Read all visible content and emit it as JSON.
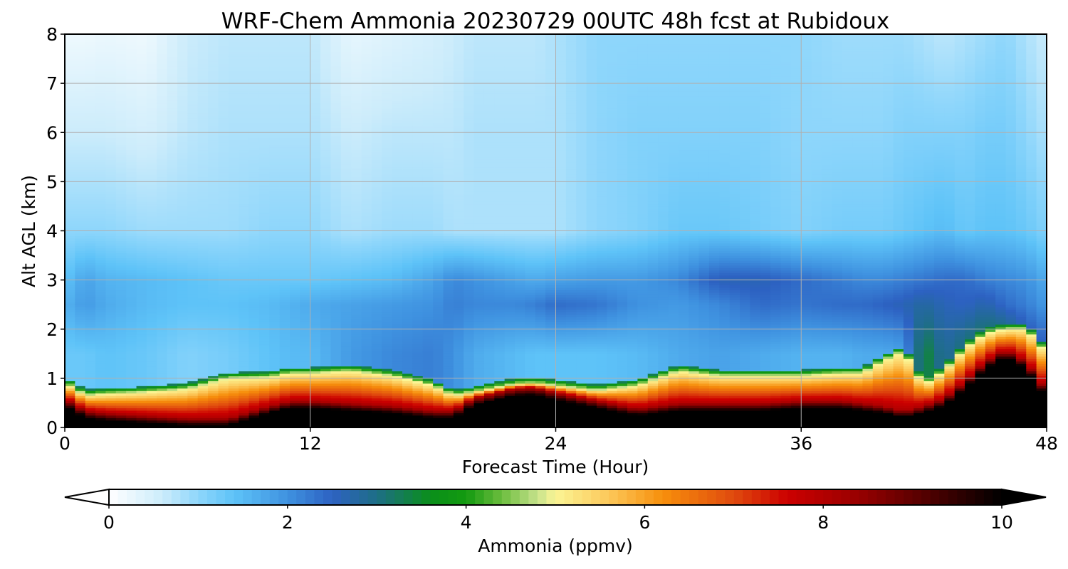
{
  "chart_data": {
    "type": "heatmap",
    "title": "WRF-Chem Ammonia  20230729 00UTC 48h fcst at Rubidoux",
    "xlabel": "Forecast Time (Hour)",
    "ylabel": "Alt AGL (km)",
    "xlim": [
      0,
      48
    ],
    "ylim": [
      0,
      8
    ],
    "xticks": [
      "0",
      "12",
      "24",
      "36",
      "48"
    ],
    "yticks": [
      "0",
      "1",
      "2",
      "3",
      "4",
      "5",
      "6",
      "7",
      "8"
    ],
    "grid": true,
    "colorbar": {
      "label": "Ammonia  (ppmv)",
      "range": [
        0,
        10
      ],
      "ticks": [
        "0",
        "2",
        "4",
        "6",
        "8",
        "10"
      ],
      "extend": "both",
      "stops": [
        [
          0,
          "#ffffff"
        ],
        [
          0.6,
          "#ccecfb"
        ],
        [
          1.0,
          "#8ed6fb"
        ],
        [
          1.4,
          "#5ec3f8"
        ],
        [
          2.0,
          "#3f92e0"
        ],
        [
          2.5,
          "#2d62c2"
        ],
        [
          3.0,
          "#1e6e86"
        ],
        [
          3.6,
          "#0a8f1a"
        ],
        [
          4.0,
          "#139a10"
        ],
        [
          4.4,
          "#6cbd3e"
        ],
        [
          4.8,
          "#c6e28c"
        ],
        [
          5.0,
          "#fbf595"
        ],
        [
          5.6,
          "#fcc85a"
        ],
        [
          6.2,
          "#f78f0c"
        ],
        [
          7.0,
          "#e04a0e"
        ],
        [
          7.6,
          "#cc0000"
        ],
        [
          8.4,
          "#980000"
        ],
        [
          9.2,
          "#4d0000"
        ],
        [
          10,
          "#000000"
        ]
      ]
    },
    "forecast_hours": [
      0,
      1,
      2,
      4,
      6,
      8,
      10,
      11,
      12,
      14,
      16,
      18,
      19,
      20,
      22,
      23,
      24,
      26,
      28,
      30,
      32,
      34,
      36,
      38,
      39,
      40,
      41,
      42,
      43,
      44,
      45,
      46,
      47,
      48
    ],
    "series": [
      {
        "name": "boundary_layer_top_km",
        "values": [
          0.9,
          0.65,
          0.68,
          0.72,
          0.78,
          1.0,
          1.02,
          1.1,
          1.1,
          1.15,
          1.05,
          0.85,
          0.65,
          0.72,
          0.88,
          0.9,
          0.85,
          0.75,
          0.85,
          1.15,
          1.05,
          1.05,
          1.05,
          1.1,
          1.1,
          1.35,
          1.55,
          0.85,
          1.15,
          1.6,
          1.9,
          2.0,
          2.0,
          1.5
        ]
      },
      {
        "name": "surface_layer_top_km",
        "values": [
          0.6,
          0.35,
          0.3,
          0.25,
          0.2,
          0.2,
          0.45,
          0.55,
          0.55,
          0.5,
          0.45,
          0.35,
          0.35,
          0.6,
          0.8,
          0.82,
          0.72,
          0.55,
          0.4,
          0.5,
          0.5,
          0.5,
          0.55,
          0.55,
          0.5,
          0.45,
          0.35,
          0.45,
          0.6,
          0.95,
          1.35,
          1.6,
          1.35,
          0.75
        ]
      }
    ],
    "upper_levels_km": [
      1.5,
      2.5,
      3.0,
      4.0,
      6.0,
      8.0
    ],
    "upper_values_ppmv": [
      [
        1.3,
        1.6,
        1.4,
        1.0,
        0.6,
        0.2
      ],
      [
        1.3,
        1.9,
        1.8,
        1.0,
        0.6,
        0.2
      ],
      [
        1.4,
        1.7,
        1.6,
        1.0,
        0.6,
        0.25
      ],
      [
        1.3,
        1.5,
        1.5,
        0.9,
        0.5,
        0.2
      ],
      [
        1.1,
        1.4,
        1.4,
        0.9,
        0.7,
        0.6
      ],
      [
        1.2,
        1.4,
        1.3,
        0.9,
        0.8,
        0.7
      ],
      [
        1.4,
        1.5,
        1.3,
        1.0,
        0.8,
        0.7
      ],
      [
        1.5,
        1.6,
        1.3,
        1.0,
        0.8,
        0.7
      ],
      [
        1.5,
        1.7,
        1.3,
        1.0,
        0.8,
        0.7
      ],
      [
        1.9,
        1.8,
        1.4,
        0.8,
        0.6,
        0.3
      ],
      [
        2.1,
        1.9,
        1.5,
        0.9,
        0.7,
        0.4
      ],
      [
        2.2,
        2.0,
        1.8,
        0.9,
        0.7,
        0.5
      ],
      [
        2.0,
        2.2,
        2.1,
        0.8,
        0.7,
        0.6
      ],
      [
        1.7,
        2.1,
        2.0,
        0.8,
        0.8,
        0.7
      ],
      [
        1.5,
        2.1,
        1.8,
        0.8,
        0.8,
        0.7
      ],
      [
        1.4,
        2.2,
        1.7,
        0.8,
        0.8,
        0.7
      ],
      [
        1.4,
        2.4,
        1.8,
        0.8,
        0.8,
        0.8
      ],
      [
        1.4,
        2.3,
        1.9,
        1.0,
        1.0,
        1.0
      ],
      [
        1.5,
        2.0,
        1.9,
        1.1,
        1.1,
        1.0
      ],
      [
        1.7,
        1.9,
        2.1,
        1.3,
        1.1,
        1.0
      ],
      [
        1.8,
        2.1,
        2.6,
        1.3,
        1.1,
        1.0
      ],
      [
        1.7,
        2.4,
        2.6,
        1.2,
        1.1,
        1.0
      ],
      [
        1.6,
        2.3,
        2.4,
        1.1,
        1.0,
        1.0
      ],
      [
        1.6,
        2.4,
        2.2,
        1.2,
        1.0,
        0.9
      ],
      [
        1.7,
        2.4,
        2.1,
        1.2,
        1.0,
        0.9
      ],
      [
        1.7,
        2.5,
        2.1,
        1.2,
        1.0,
        0.9
      ],
      [
        1.8,
        2.6,
        2.2,
        1.3,
        1.1,
        0.9
      ],
      [
        3.5,
        2.8,
        2.3,
        1.4,
        1.1,
        0.8
      ],
      [
        2.8,
        2.6,
        2.4,
        1.5,
        1.1,
        0.7
      ],
      [
        3.2,
        2.5,
        2.4,
        1.3,
        1.1,
        0.8
      ],
      [
        3.6,
        2.7,
        2.2,
        1.4,
        1.2,
        0.9
      ],
      [
        3.7,
        2.4,
        2.1,
        1.4,
        1.2,
        1.0
      ],
      [
        3.0,
        2.2,
        2.0,
        1.3,
        1.0,
        0.8
      ],
      [
        2.6,
        1.9,
        1.7,
        1.1,
        0.8,
        0.6
      ]
    ]
  }
}
